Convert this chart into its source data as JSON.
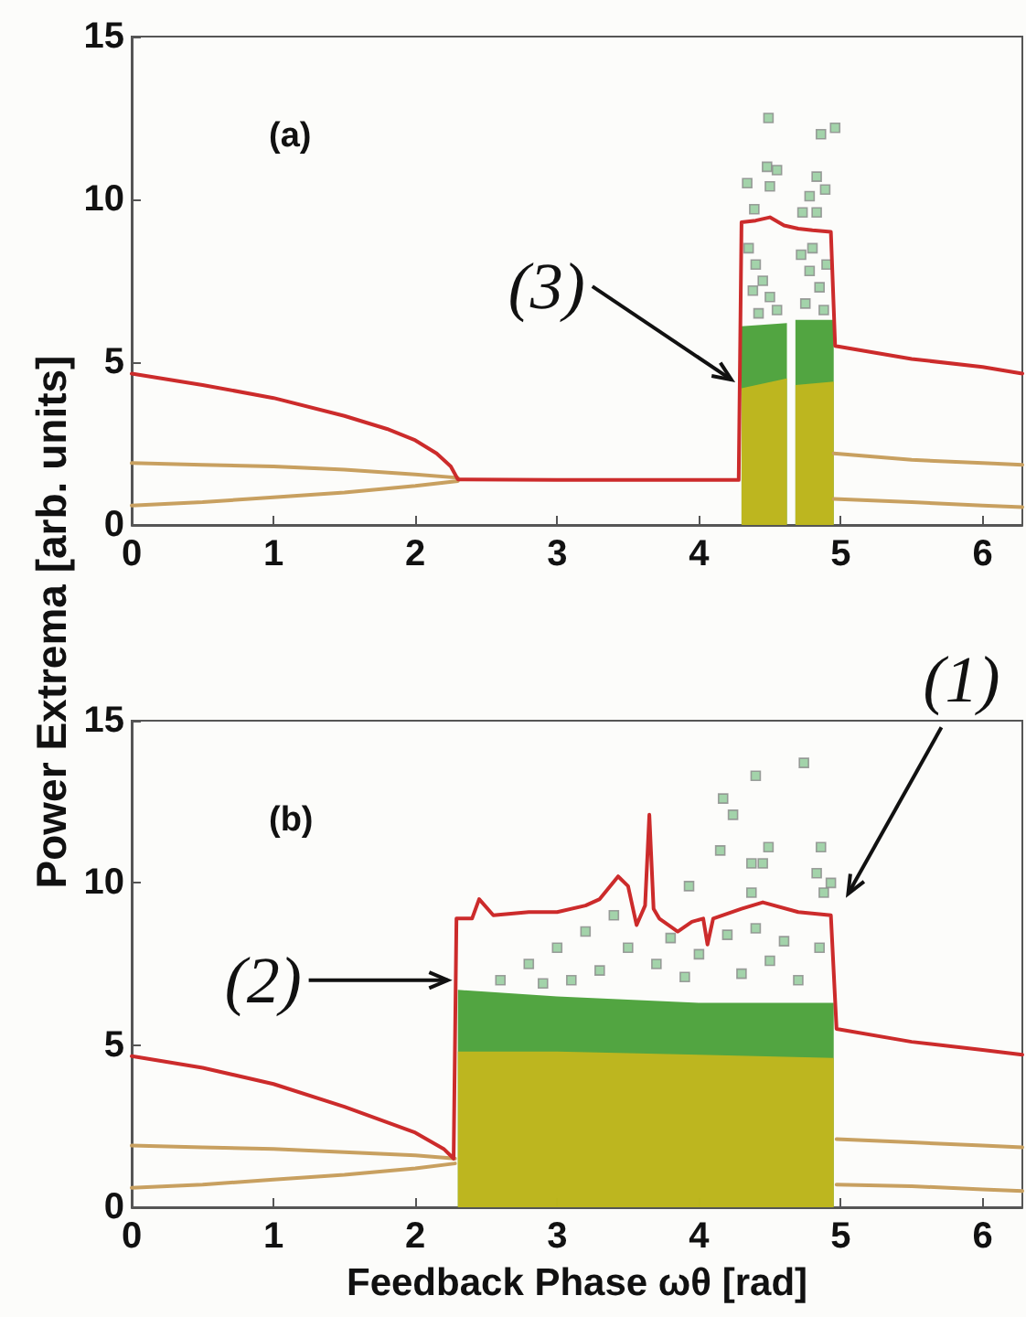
{
  "chart_data": [
    {
      "type": "line",
      "ylabel": "Power Extrema [arb. units]",
      "annotations": [
        "(a)",
        {
          "text": "(3)",
          "x": 4.28,
          "y": 4.8
        }
      ],
      "xlim": [
        0,
        6.28
      ],
      "ylim": [
        0,
        15
      ],
      "xticks": [
        0,
        1,
        2,
        3,
        4,
        5,
        6
      ],
      "yticks": [
        0,
        5,
        10,
        15
      ],
      "grid": false,
      "line_style": "solid",
      "series": [
        {
          "type": "area",
          "color": "#3f9b2c",
          "x": [
            4.3,
            4.62,
            4.64,
            4.68,
            4.95
          ],
          "values": [
            6.1,
            6.2,
            null,
            6.3,
            6.3
          ]
        },
        {
          "type": "area",
          "color": "#c9b81c",
          "x": [
            4.3,
            4.62,
            4.64,
            4.68,
            4.95
          ],
          "values": [
            4.2,
            4.5,
            null,
            4.3,
            4.4
          ]
        },
        {
          "color": "#c8a060",
          "x": [
            0,
            0.5,
            1,
            1.5,
            2,
            2.3,
            3,
            4.95,
            5.5,
            6,
            6.28
          ],
          "values": [
            1.9,
            1.85,
            1.8,
            1.7,
            1.55,
            1.45,
            null,
            2.2,
            2.0,
            1.9,
            1.85
          ]
        },
        {
          "color": "#c8a060",
          "x": [
            0,
            0.5,
            1,
            1.5,
            2,
            2.3,
            3,
            4.95,
            5.5,
            6,
            6.28
          ],
          "values": [
            0.6,
            0.7,
            0.85,
            1.0,
            1.2,
            1.35,
            null,
            0.8,
            0.7,
            0.6,
            0.55
          ]
        },
        {
          "type": "scatter",
          "marker": "square",
          "color": "#8cc896",
          "x": [
            4.49,
            4.86,
            4.96,
            4.34,
            4.48,
            4.55,
            4.5,
            4.83,
            4.89,
            4.78,
            4.39,
            4.73,
            4.83,
            4.35,
            4.4,
            4.45,
            4.5,
            4.55,
            4.38,
            4.42,
            4.72,
            4.78,
            4.85,
            4.9,
            4.75,
            4.88,
            4.8
          ],
          "values": [
            12.5,
            12.0,
            12.2,
            10.5,
            11.0,
            10.9,
            10.4,
            10.7,
            10.3,
            10.1,
            9.7,
            9.6,
            9.6,
            8.5,
            8.0,
            7.5,
            7.0,
            6.6,
            7.2,
            6.5,
            8.3,
            7.8,
            7.3,
            8.0,
            6.8,
            6.6,
            8.5
          ]
        },
        {
          "color": "#cc2b2b",
          "x": [
            0,
            0.5,
            1,
            1.5,
            1.8,
            2.0,
            2.15,
            2.25,
            2.3,
            3,
            4,
            4.28,
            4.3,
            4.4,
            4.5,
            4.6,
            4.7,
            4.8,
            4.93,
            4.96,
            5.5,
            6,
            6.28
          ],
          "values": [
            4.65,
            4.3,
            3.9,
            3.35,
            2.95,
            2.6,
            2.2,
            1.8,
            1.4,
            1.38,
            1.38,
            1.38,
            9.3,
            9.35,
            9.45,
            9.2,
            9.1,
            9.05,
            9.0,
            5.5,
            5.1,
            4.85,
            4.65
          ]
        }
      ]
    },
    {
      "type": "line",
      "xlabel": "Feedback Phase ωθ [rad]",
      "annotations": [
        "(b)",
        {
          "text": "(2)",
          "x": 2.28,
          "y": 7.0
        },
        {
          "text": "(1)",
          "x": 5.0,
          "y": 10.0
        }
      ],
      "xlim": [
        0,
        6.28
      ],
      "ylim": [
        0,
        15
      ],
      "xticks": [
        0,
        1,
        2,
        3,
        4,
        5,
        6
      ],
      "yticks": [
        0,
        5,
        10,
        15
      ],
      "grid": false,
      "line_style": "solid",
      "series": [
        {
          "type": "area",
          "color": "#3f9b2c",
          "x": [
            2.3,
            3,
            4,
            4.95
          ],
          "values": [
            6.7,
            6.5,
            6.3,
            6.3
          ]
        },
        {
          "type": "area",
          "color": "#c9b81c",
          "x": [
            2.3,
            3,
            4,
            4.95
          ],
          "values": [
            4.8,
            4.8,
            4.7,
            4.6
          ]
        },
        {
          "color": "#c8a060",
          "x": [
            0,
            0.5,
            1,
            1.5,
            2,
            2.28,
            3,
            4.97,
            5.5,
            6,
            6.28
          ],
          "values": [
            1.9,
            1.85,
            1.8,
            1.7,
            1.6,
            1.5,
            null,
            2.1,
            2.0,
            1.9,
            1.85
          ]
        },
        {
          "color": "#c8a060",
          "x": [
            0,
            0.5,
            1,
            1.5,
            2,
            2.28,
            3,
            4.97,
            5.5,
            6,
            6.28
          ],
          "values": [
            0.6,
            0.7,
            0.85,
            1.0,
            1.2,
            1.35,
            null,
            0.7,
            0.65,
            0.55,
            0.5
          ]
        },
        {
          "type": "scatter",
          "marker": "square",
          "color": "#8cc896",
          "x": [
            4.4,
            4.74,
            4.17,
            4.24,
            4.15,
            4.49,
            4.86,
            4.37,
            4.45,
            4.83,
            4.93,
            4.88,
            4.37,
            3.93,
            2.6,
            2.8,
            3.0,
            3.2,
            3.4,
            3.3,
            3.5,
            3.7,
            3.8,
            3.9,
            4.0,
            4.2,
            4.3,
            4.4,
            4.5,
            4.6,
            4.7,
            4.85,
            3.1,
            2.9
          ],
          "values": [
            13.3,
            13.7,
            12.6,
            12.1,
            11.0,
            11.1,
            11.1,
            10.6,
            10.6,
            10.3,
            10.0,
            9.7,
            9.7,
            9.9,
            7.0,
            7.5,
            8.0,
            8.5,
            9.0,
            7.3,
            8.0,
            7.5,
            8.3,
            7.1,
            7.8,
            8.4,
            7.2,
            8.6,
            7.6,
            8.2,
            7.0,
            8.0,
            7.0,
            6.9
          ]
        },
        {
          "color": "#cc2b2b",
          "x": [
            0,
            0.5,
            1,
            1.5,
            2,
            2.2,
            2.27,
            2.29,
            2.4,
            2.45,
            2.55,
            2.8,
            3.0,
            3.2,
            3.3,
            3.43,
            3.5,
            3.56,
            3.62,
            3.65,
            3.68,
            3.72,
            3.85,
            3.95,
            4.03,
            4.06,
            4.1,
            4.3,
            4.45,
            4.7,
            4.93,
            4.97,
            5.5,
            6,
            6.28
          ],
          "values": [
            4.66,
            4.3,
            3.8,
            3.1,
            2.3,
            1.8,
            1.5,
            8.9,
            8.9,
            9.5,
            9.0,
            9.1,
            9.1,
            9.3,
            9.5,
            10.2,
            9.9,
            8.7,
            9.3,
            12.1,
            9.2,
            8.9,
            8.5,
            8.8,
            8.9,
            8.1,
            8.9,
            9.2,
            9.4,
            9.1,
            9.0,
            5.5,
            5.1,
            4.85,
            4.7
          ]
        }
      ]
    }
  ]
}
